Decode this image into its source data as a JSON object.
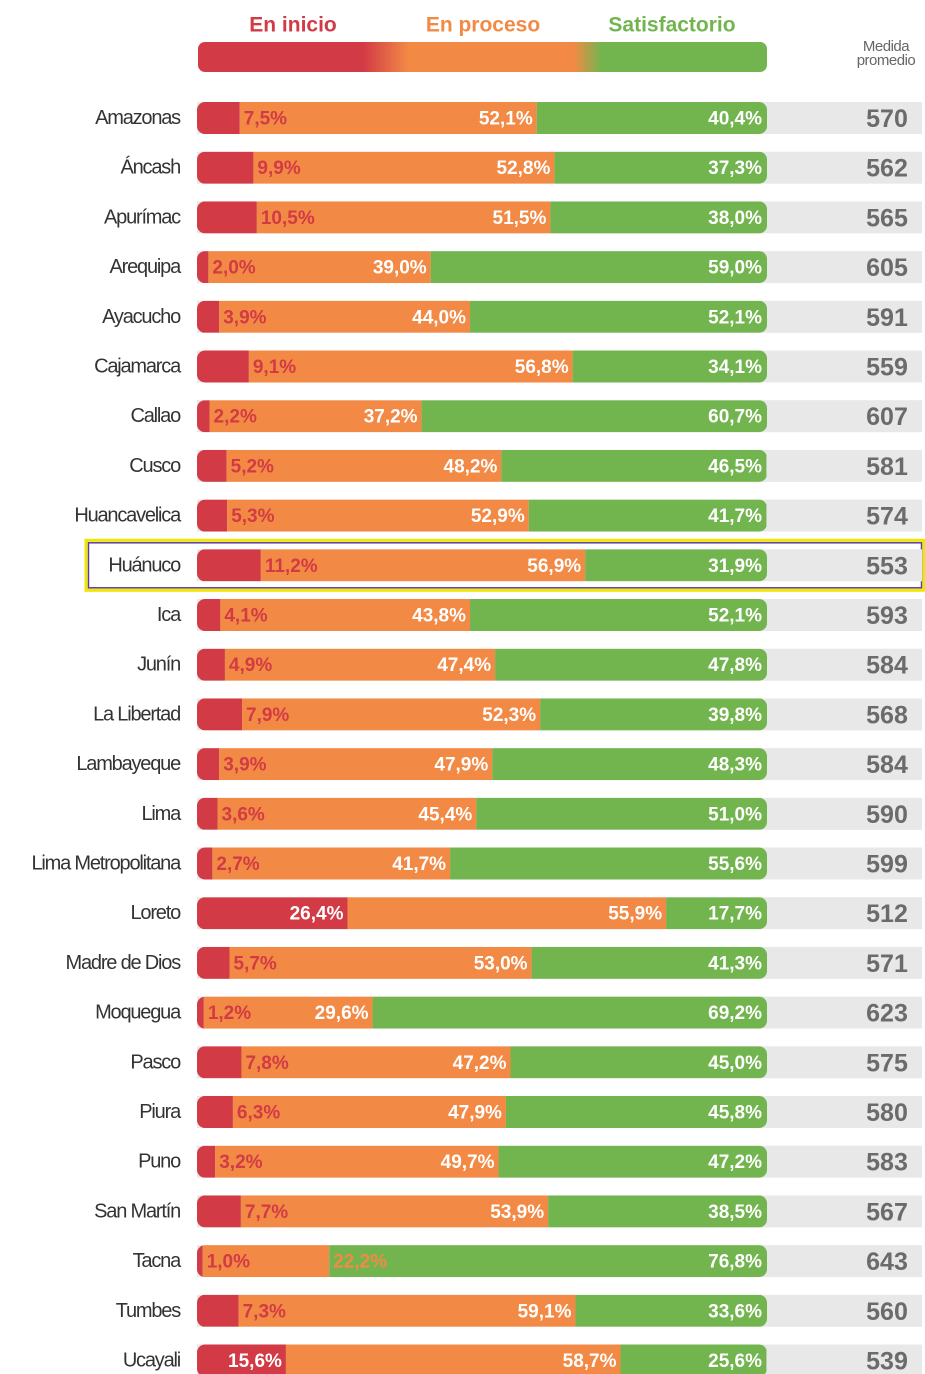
{
  "chart_data": {
    "type": "stacked_bar",
    "categories": [
      "Amazonas",
      "Áncash",
      "Apurímac",
      "Arequipa",
      "Ayacucho",
      "Cajamarca",
      "Callao",
      "Cusco",
      "Huancavelica",
      "Huánuco",
      "Ica",
      "Junín",
      "La Libertad",
      "Lambayeque",
      "Lima",
      "Lima Metropolitana",
      "Loreto",
      "Madre de Dios",
      "Moquegua",
      "Pasco",
      "Piura",
      "Puno",
      "San Martín",
      "Tacna",
      "Tumbes",
      "Ucayali"
    ],
    "xlim": [
      0,
      100
    ],
    "highlight": "Huánuco",
    "series": [
      {
        "name": "En inicio",
        "color": "#d23a45",
        "values": [
          7.5,
          9.9,
          10.5,
          2.0,
          3.9,
          9.1,
          2.2,
          5.2,
          5.3,
          11.2,
          4.1,
          4.9,
          7.9,
          3.9,
          3.6,
          2.7,
          26.4,
          5.7,
          1.2,
          7.8,
          6.3,
          3.2,
          7.7,
          1.0,
          7.3,
          15.6
        ],
        "value_labels": [
          "7,5%",
          "9,9%",
          "10,5%",
          "2,0%",
          "3,9%",
          "9,1%",
          "2,2%",
          "5,2%",
          "5,3%",
          "11,2%",
          "4,1%",
          "4,9%",
          "7,9%",
          "3,9%",
          "3,6%",
          "2,7%",
          "26,4%",
          "5,7%",
          "1,2%",
          "7,8%",
          "6,3%",
          "3,2%",
          "7,7%",
          "1,0%",
          "7,3%",
          "15,6%"
        ]
      },
      {
        "name": "En proceso",
        "color": "#f28a45",
        "values": [
          52.1,
          52.8,
          51.5,
          39.0,
          44.0,
          56.8,
          37.2,
          48.2,
          52.9,
          56.9,
          43.8,
          47.4,
          52.3,
          47.9,
          45.4,
          41.7,
          55.9,
          53.0,
          29.6,
          47.2,
          47.9,
          49.7,
          53.9,
          22.2,
          59.1,
          58.7
        ],
        "value_labels": [
          "52,1%",
          "52,8%",
          "51,5%",
          "39,0%",
          "44,0%",
          "56,8%",
          "37,2%",
          "48,2%",
          "52,9%",
          "56,9%",
          "43,8%",
          "47,4%",
          "52,3%",
          "47,9%",
          "45,4%",
          "41,7%",
          "55,9%",
          "53,0%",
          "29,6%",
          "47,2%",
          "47,9%",
          "49,7%",
          "53,9%",
          "22,2%",
          "59,1%",
          "58,7%"
        ]
      },
      {
        "name": "Satisfactorio",
        "color": "#72b54f",
        "values": [
          40.4,
          37.3,
          38.0,
          59.0,
          52.1,
          34.1,
          60.7,
          46.5,
          41.7,
          31.9,
          52.1,
          47.8,
          39.8,
          48.3,
          51.0,
          55.6,
          17.7,
          41.3,
          69.2,
          45.0,
          45.8,
          47.2,
          38.5,
          76.8,
          33.6,
          25.6
        ],
        "value_labels": [
          "40,4%",
          "37,3%",
          "38,0%",
          "59,0%",
          "52,1%",
          "34,1%",
          "60,7%",
          "46,5%",
          "41,7%",
          "31,9%",
          "52,1%",
          "47,8%",
          "39,8%",
          "48,3%",
          "51,0%",
          "55,6%",
          "17,7%",
          "41,3%",
          "69,2%",
          "45,0%",
          "45,8%",
          "47,2%",
          "38,5%",
          "76,8%",
          "33,6%",
          "25,6%"
        ]
      }
    ],
    "average": {
      "name": "Medida promedio",
      "values": [
        570,
        562,
        565,
        605,
        591,
        559,
        607,
        581,
        574,
        553,
        593,
        584,
        568,
        584,
        590,
        599,
        512,
        571,
        623,
        575,
        580,
        583,
        567,
        643,
        560,
        539
      ]
    }
  }
}
